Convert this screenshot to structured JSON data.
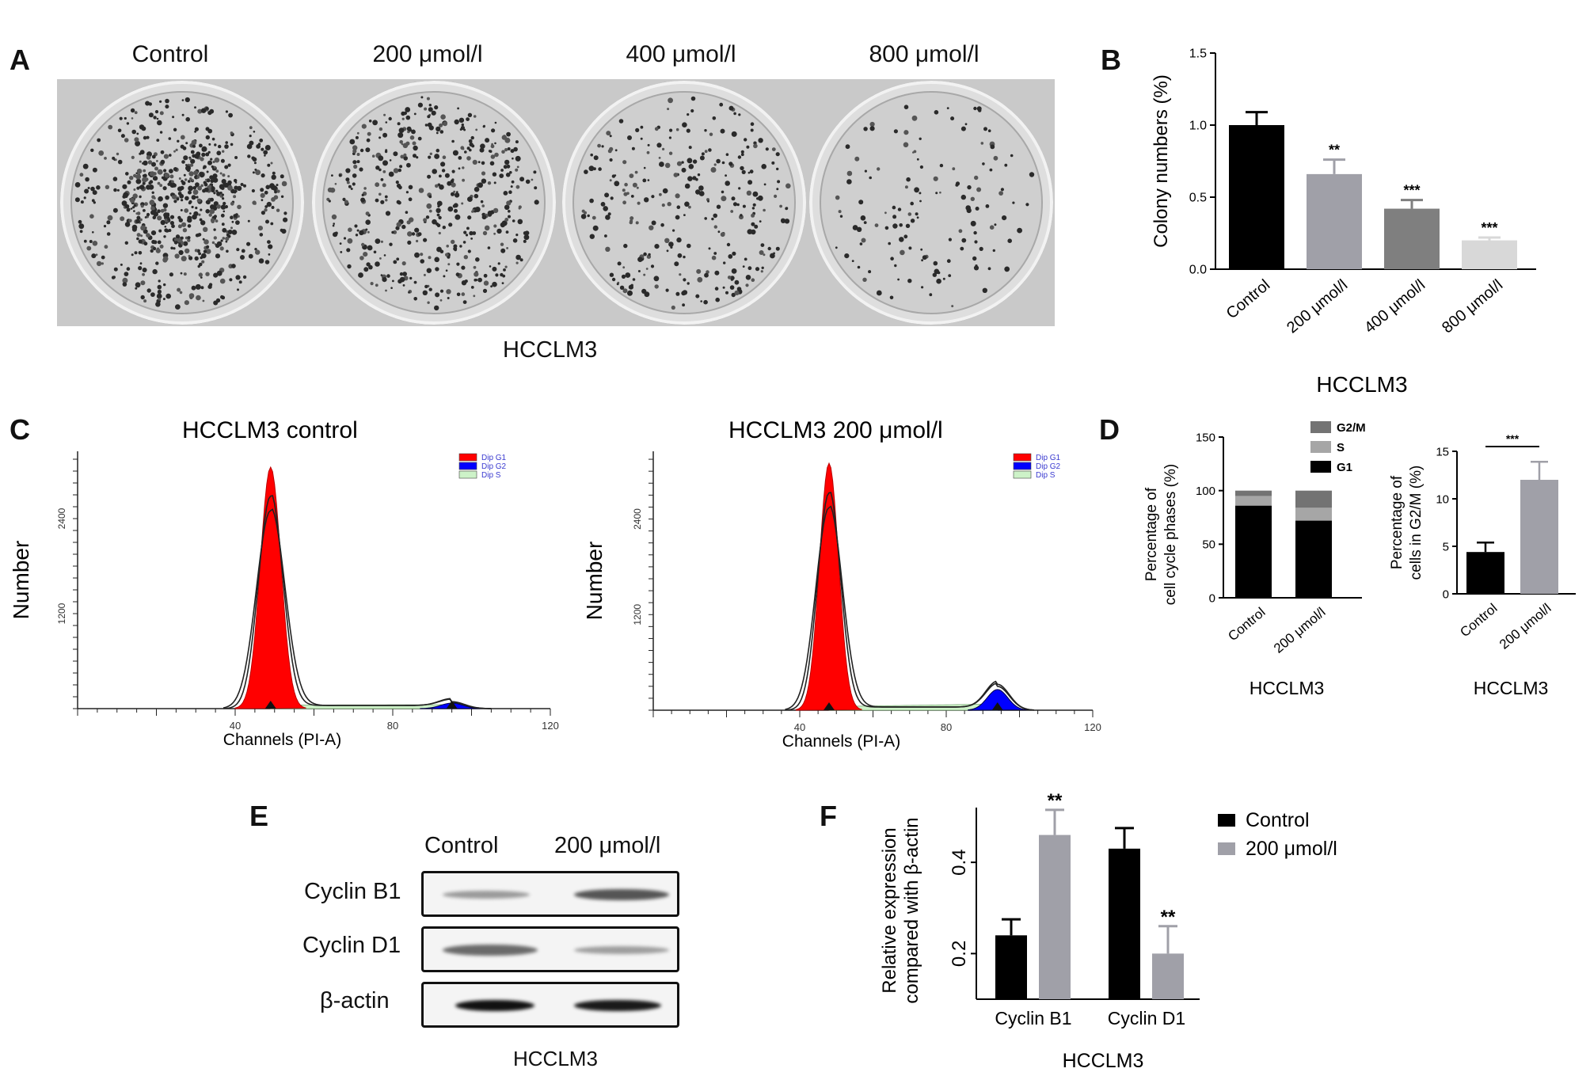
{
  "panel_letters": {
    "a": "A",
    "b": "B",
    "c": "C",
    "d": "D",
    "e": "E",
    "f": "F"
  },
  "cell_line": "HCCLM3",
  "panel_a": {
    "dishes": [
      {
        "label": "Control",
        "colony_fraction": 1.0
      },
      {
        "label": "200 μmol/l",
        "colony_fraction": 0.66
      },
      {
        "label": "400 μmol/l",
        "colony_fraction": 0.42
      },
      {
        "label": "800 μmol/l",
        "colony_fraction": 0.2
      }
    ],
    "caption": "HCCLM3"
  },
  "panel_c": {
    "histograms": [
      {
        "title": "HCCLM3  control",
        "ylabel": "Number",
        "xlabel": "Channels (PI-A)",
        "x_ticks": [
          "40",
          "80",
          "120"
        ],
        "y_ticks": [
          "2400",
          "1200"
        ],
        "legend": [
          "Dip G1",
          "Dip G2",
          "Dip S"
        ],
        "g1_peak": {
          "x": 49,
          "height": 3050
        },
        "g2_peak": {
          "x": 95,
          "height": 70
        }
      },
      {
        "title": "HCCLM3  200 μmol/l",
        "ylabel": "Number",
        "xlabel": "Channels (PI-A)",
        "x_ticks": [
          "40",
          "80",
          "120"
        ],
        "y_ticks": [
          "2400",
          "1200"
        ],
        "legend": [
          "Dip G1",
          "Dip G2",
          "Dip S"
        ],
        "g1_peak": {
          "x": 48,
          "height": 3100
        },
        "g2_peak": {
          "x": 94,
          "height": 260
        }
      }
    ],
    "colors": {
      "g1": "#ff0000",
      "g2": "#0000ff",
      "s": "#cdf2c8"
    }
  },
  "panel_e": {
    "columns": [
      "Control",
      "200 μmol/l"
    ],
    "rows": [
      "Cyclin B1",
      "Cyclin D1",
      "β-actin"
    ],
    "caption": "HCCLM3"
  },
  "chart_data": [
    {
      "id": "B",
      "type": "bar",
      "categories": [
        "Control",
        "200 μmol/l",
        "400 μmol/l",
        "800 μmol/l"
      ],
      "values": [
        1.0,
        0.66,
        0.42,
        0.2
      ],
      "errors": [
        0.09,
        0.1,
        0.06,
        0.02
      ],
      "significance": [
        "",
        "**",
        "***",
        "***"
      ],
      "colors": [
        "#000000",
        "#a0a0a8",
        "#7f7f7f",
        "#d8d8d8"
      ],
      "ylabel": "Colony numbers (%)",
      "xlabel": "HCCLM3",
      "yticks": [
        "0.0",
        "0.5",
        "1.0",
        "1.5"
      ],
      "ylim": [
        0,
        1.5
      ]
    },
    {
      "id": "D-left",
      "type": "bar",
      "stacked": true,
      "categories": [
        "Control",
        "200 μmol/l"
      ],
      "series": [
        {
          "name": "G1",
          "values": [
            86,
            72
          ],
          "color": "#000000"
        },
        {
          "name": "S",
          "values": [
            9,
            12
          ],
          "color": "#a6a6a6"
        },
        {
          "name": "G2/M",
          "values": [
            5,
            16
          ],
          "color": "#737373"
        }
      ],
      "legend_order": [
        "G2/M",
        "S",
        "G1"
      ],
      "ylabel_lines": [
        "Percentage of",
        "cell cycle phases (%)"
      ],
      "xlabel": "HCCLM3",
      "yticks": [
        "0",
        "50",
        "100",
        "150"
      ],
      "ylim": [
        0,
        150
      ]
    },
    {
      "id": "D-right",
      "type": "bar",
      "categories": [
        "Control",
        "200 μmol/l"
      ],
      "values": [
        4.4,
        12.0
      ],
      "errors": [
        1.0,
        1.9
      ],
      "colors": [
        "#000000",
        "#a0a0a8"
      ],
      "significance_bracket": "***",
      "ylabel_lines": [
        "Percentage of",
        "cells in G2/M (%)"
      ],
      "xlabel": "HCCLM3",
      "yticks": [
        "0",
        "5",
        "10",
        "15"
      ],
      "ylim": [
        0,
        15
      ]
    },
    {
      "id": "F",
      "type": "bar",
      "categories": [
        "Cyclin B1",
        "Cyclin D1"
      ],
      "series": [
        {
          "name": "Control",
          "values": [
            0.24,
            0.43
          ],
          "errors": [
            0.035,
            0.045
          ],
          "significance": [
            "",
            ""
          ],
          "color": "#000000"
        },
        {
          "name": "200 μmol/l",
          "values": [
            0.46,
            0.2
          ],
          "errors": [
            0.055,
            0.06
          ],
          "significance": [
            "**",
            "**"
          ],
          "color": "#a0a0a8"
        }
      ],
      "ylabel_lines": [
        "Relative expression",
        "compared with β-actin"
      ],
      "xlabel": "HCCLM3",
      "yticks": [
        "0.2",
        "0.4"
      ],
      "ylim": [
        0.1,
        0.52
      ]
    }
  ]
}
